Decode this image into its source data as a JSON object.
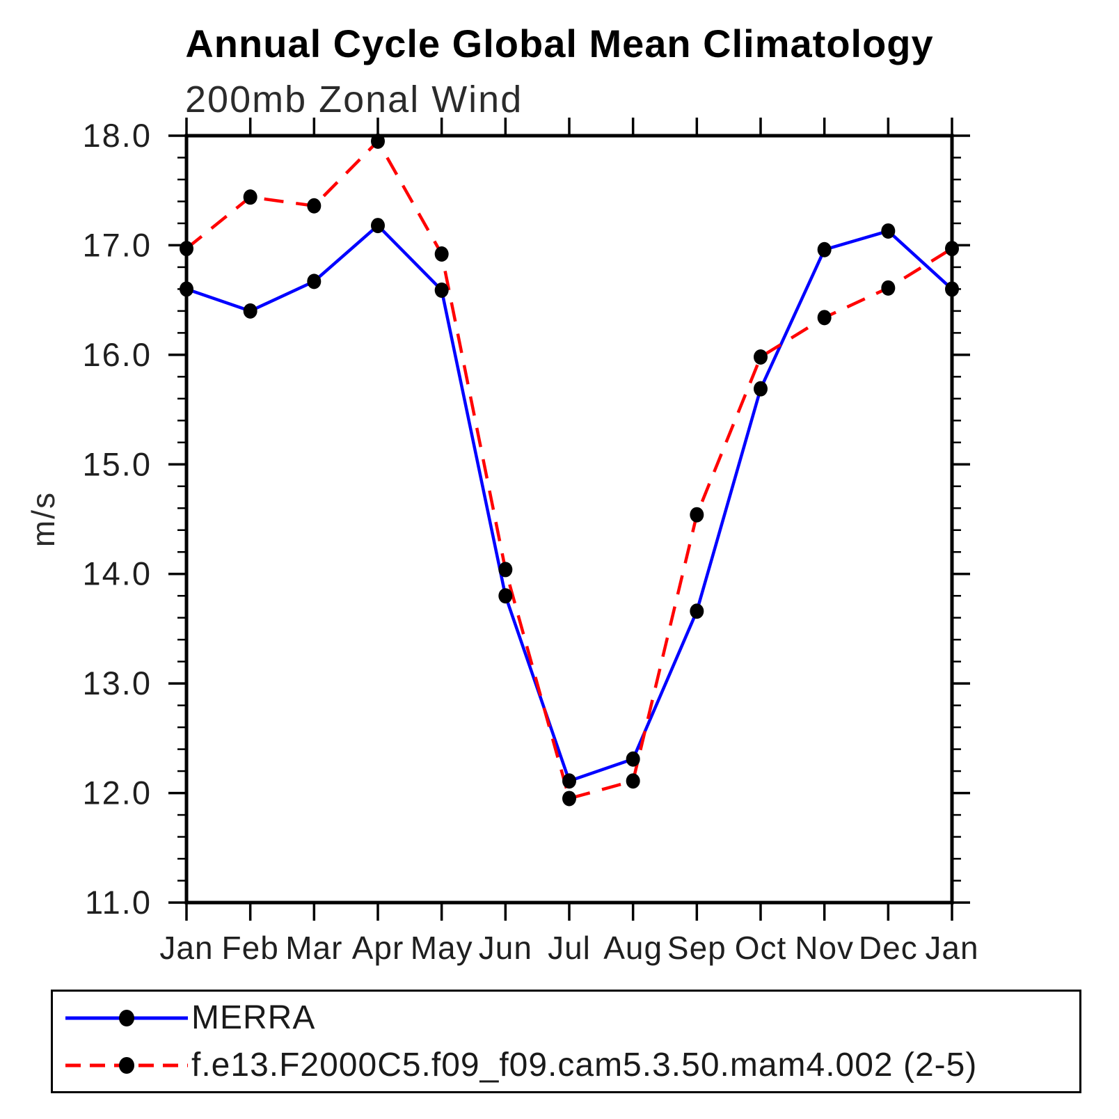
{
  "chart_data": {
    "type": "line",
    "title": "Annual Cycle Global Mean Climatology",
    "subtitle": "200mb Zonal Wind",
    "xlabel": "",
    "ylabel": "m/s",
    "categories": [
      "Jan",
      "Feb",
      "Mar",
      "Apr",
      "May",
      "Jun",
      "Jul",
      "Aug",
      "Sep",
      "Oct",
      "Nov",
      "Dec",
      "Jan"
    ],
    "ylim": [
      11.0,
      18.0
    ],
    "ytick_labels": [
      "11.0",
      "12.0",
      "13.0",
      "14.0",
      "15.0",
      "16.0",
      "17.0",
      "18.0"
    ],
    "ytick_minor_step": 0.2,
    "grid": false,
    "legend_position": "bottom",
    "axis_color": "#000000",
    "marker_color": "#000000",
    "series": [
      {
        "name": "MERRA",
        "color": "#0000ff",
        "line_style": "solid",
        "values": [
          16.6,
          16.4,
          16.67,
          17.18,
          16.59,
          13.8,
          12.11,
          12.31,
          13.66,
          15.69,
          16.96,
          17.13,
          16.6
        ]
      },
      {
        "name": "f.e13.F2000C5.f09_f09.cam5.3.50.mam4.002 (2-5)",
        "color": "#ff0000",
        "line_style": "dashed",
        "values": [
          16.97,
          17.44,
          17.36,
          17.95,
          16.92,
          14.04,
          11.95,
          12.11,
          14.54,
          15.98,
          16.34,
          16.61,
          16.97
        ]
      }
    ]
  }
}
